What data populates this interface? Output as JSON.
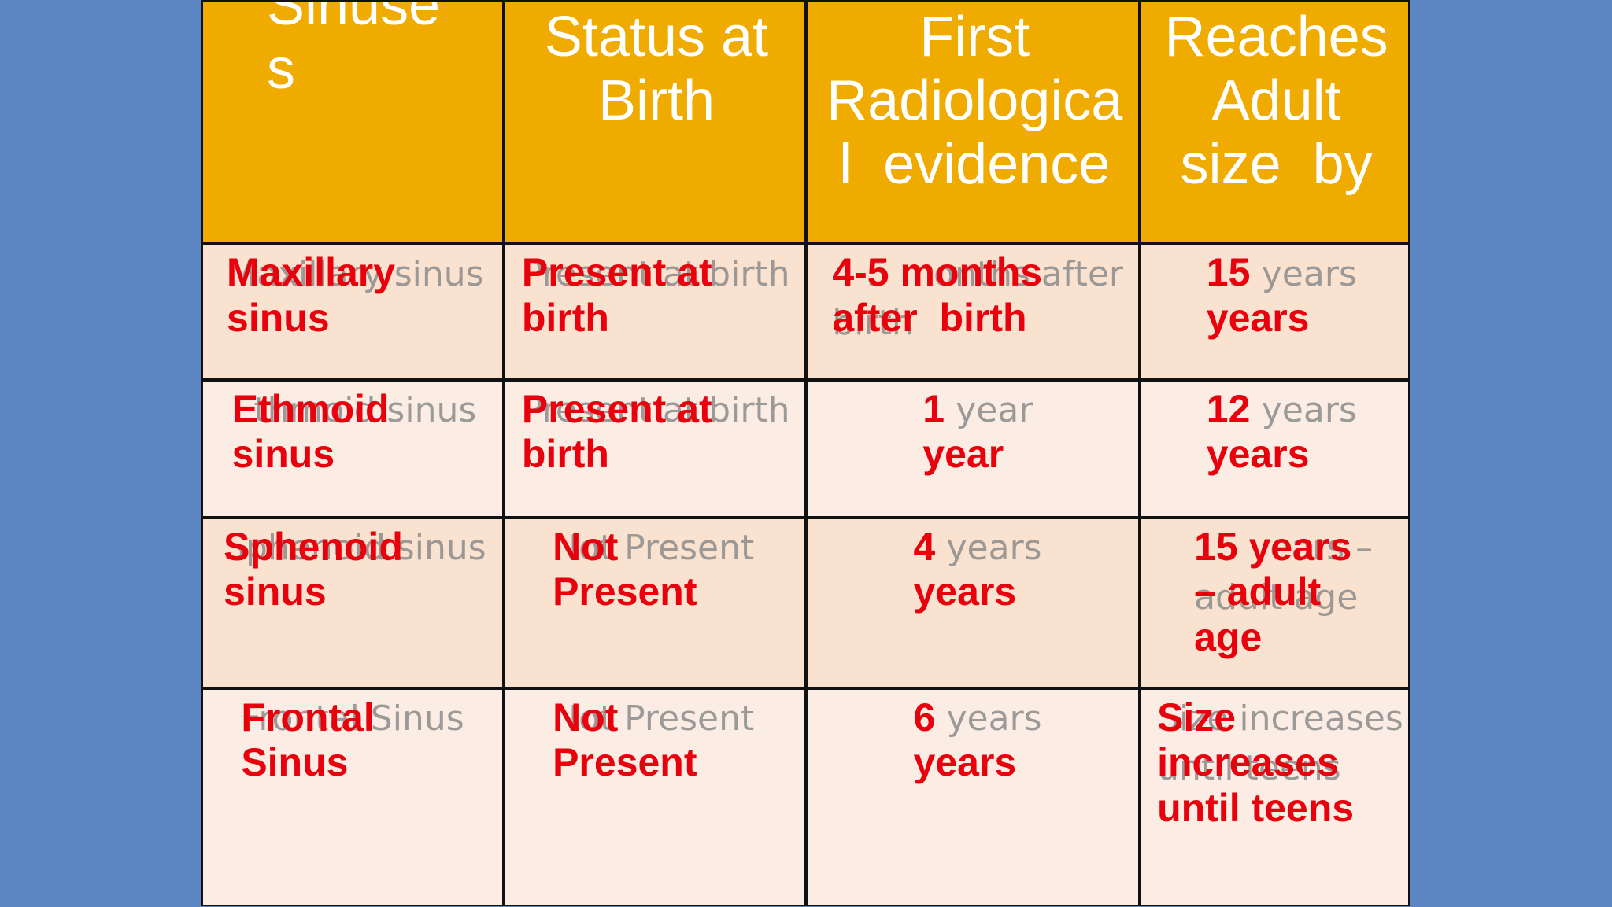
{
  "table": {
    "header": [
      [
        "Sinuse",
        "s"
      ],
      [
        "Status at",
        "Birth"
      ],
      [
        "First",
        "Radiologica",
        "l  evidence"
      ],
      [
        "Reaches",
        "Adult",
        "size  by"
      ]
    ],
    "rows": [
      [
        {
          "text": [
            "Maxillary",
            "sinus"
          ],
          "ghost": [
            "Maxillary sinus"
          ]
        },
        {
          "text": [
            "Present at",
            "birth"
          ],
          "ghost": [
            "Present at birth"
          ]
        },
        {
          "text": [
            "4-5 months",
            "after  birth"
          ],
          "ghost": [
            "4-5 months after",
            "birth"
          ]
        },
        {
          "text": [
            "15",
            "years"
          ],
          "ghost": [
            "15 years"
          ]
        }
      ],
      [
        {
          "text": [
            "Ethmoid",
            "sinus"
          ],
          "ghost": [
            "Ethmoid sinus"
          ]
        },
        {
          "text": [
            "Present at",
            "birth"
          ],
          "ghost": [
            "Present at birth"
          ]
        },
        {
          "text": [
            "1",
            "year"
          ],
          "ghost": [
            "1 year"
          ]
        },
        {
          "text": [
            "12",
            "years"
          ],
          "ghost": [
            "12 years"
          ]
        }
      ],
      [
        {
          "text": [
            "Sphenoid",
            "sinus"
          ],
          "ghost": [
            "Sphenoid sinus"
          ]
        },
        {
          "text": [
            "Not",
            "Present"
          ],
          "ghost": [
            "Not Present"
          ]
        },
        {
          "text": [
            "4",
            "years"
          ],
          "ghost": [
            "4 years"
          ]
        },
        {
          "text": [
            "15 years",
            "– adult",
            "age"
          ],
          "ghost": [
            "15 years –",
            "adult age"
          ]
        }
      ],
      [
        {
          "text": [
            "Frontal",
            "Sinus"
          ],
          "ghost": [
            "Frontal Sinus"
          ]
        },
        {
          "text": [
            "Not",
            "Present"
          ],
          "ghost": [
            "Not Present"
          ]
        },
        {
          "text": [
            "6",
            "years"
          ],
          "ghost": [
            "6 years"
          ]
        },
        {
          "text": [
            "Size",
            "increases",
            "until teens"
          ],
          "ghost": [
            "Size increases",
            "until teens"
          ]
        }
      ]
    ]
  }
}
